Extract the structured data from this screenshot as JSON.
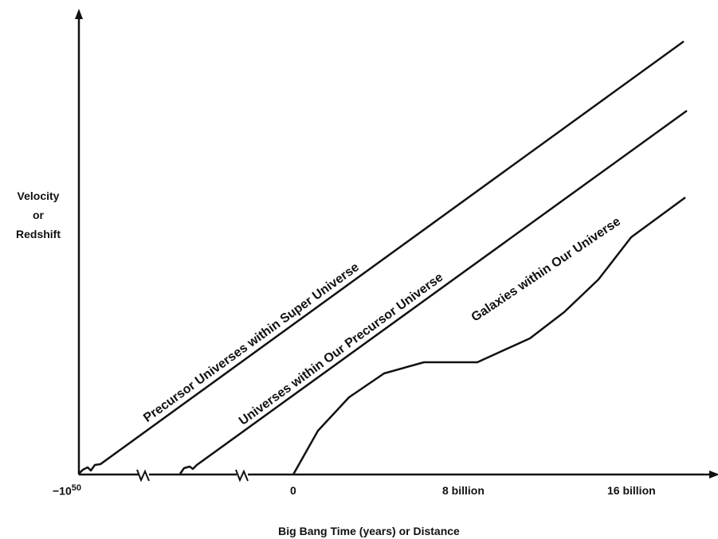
{
  "y_axis_label": [
    "Velocity",
    "or",
    "Redshift"
  ],
  "x_axis_label": "Big Bang Time (years) or Distance",
  "x_ticks": {
    "neg": "−10",
    "neg_exp": "50",
    "zero": "0",
    "eight": "8 billion",
    "sixteen": "16 billion"
  },
  "curves": [
    {
      "id": "precursor",
      "label": "Precursor Universes within Super Universe"
    },
    {
      "id": "universes",
      "label": "Universes within Our Precursor Universe"
    },
    {
      "id": "galaxies",
      "label": "Galaxies within Our Universe"
    }
  ],
  "colors": {
    "line": "#111111",
    "background": "#ffffff"
  }
}
